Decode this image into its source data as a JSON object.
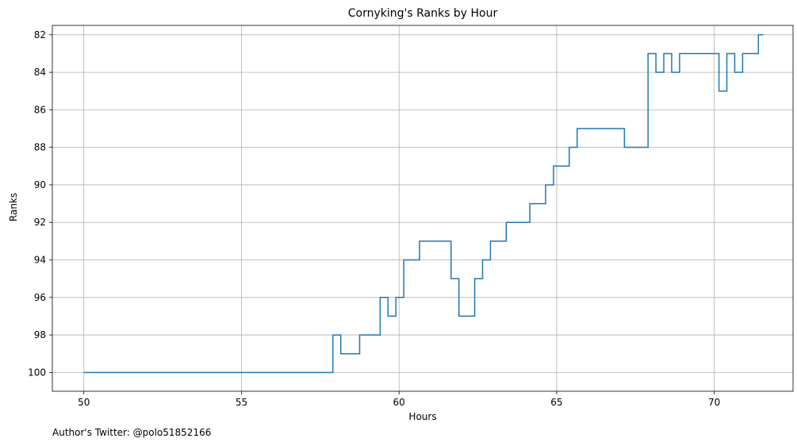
{
  "chart_data": {
    "type": "line",
    "title": "Cornyking's Ranks by Hour",
    "xlabel": "Hours",
    "ylabel": "Ranks",
    "xlim": [
      49.0,
      72.5
    ],
    "ylim": [
      101.0,
      81.5
    ],
    "y_inverted": true,
    "grid": true,
    "step": "post",
    "x_ticks": [
      50,
      55,
      60,
      65,
      70
    ],
    "y_ticks": [
      82,
      84,
      86,
      88,
      90,
      92,
      94,
      96,
      98,
      100
    ],
    "line_color": "#1f77b4",
    "series": [
      {
        "x": [
          50.0,
          57.9,
          58.15,
          58.75,
          59.4,
          59.65,
          59.9,
          60.15,
          60.65,
          61.65,
          61.9,
          62.4,
          62.65,
          62.9,
          63.4,
          64.15,
          64.65,
          64.9,
          65.4,
          65.65,
          67.15,
          67.9,
          68.15,
          68.4,
          68.65,
          68.9,
          70.15,
          70.4,
          70.65,
          70.9,
          71.4,
          71.55
        ],
        "y": [
          100,
          98,
          99,
          98,
          96,
          97,
          96,
          94,
          93,
          95,
          97,
          95,
          94,
          93,
          92,
          91,
          90,
          89,
          88,
          87,
          88,
          83,
          84,
          83,
          84,
          83,
          85,
          83,
          84,
          83,
          82,
          82
        ]
      }
    ]
  },
  "footnote": "Author's Twitter: @polo51852166"
}
